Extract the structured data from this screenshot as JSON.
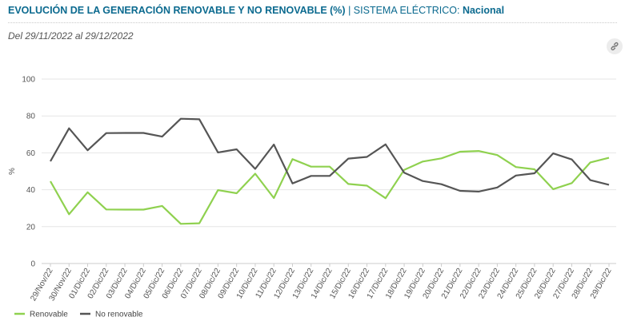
{
  "header": {
    "title": "EVOLUCIÓN DE LA GENERACIÓN RENOVABLE Y NO RENOVABLE (%)",
    "separator": "|",
    "system_label": "SISTEMA ELÉCTRICO:",
    "system_value": "Nacional"
  },
  "date_range": "Del 29/11/2022 al 29/12/2022",
  "link_icon": "link-icon",
  "colors": {
    "renovable": "#8fd14f",
    "no_renovable": "#555555",
    "grid": "#e6e6e6",
    "title": "#0b6a8f"
  },
  "chart_data": {
    "type": "line",
    "ylabel": "%",
    "ylim": [
      0,
      100
    ],
    "yticks": [
      "0",
      "20",
      "40",
      "60",
      "80",
      "100"
    ],
    "grid": true,
    "legend_position": "bottom-left",
    "categories": [
      "29/Nov/22",
      "30/Nov/22",
      "01/Dic/22",
      "02/Dic/22",
      "03/Dic/22",
      "04/Dic/22",
      "05/Dic/22",
      "06/Dic/22",
      "07/Dic/22",
      "08/Dic/22",
      "09/Dic/22",
      "10/Dic/22",
      "11/Dic/22",
      "12/Dic/22",
      "13/Dic/22",
      "14/Dic/22",
      "15/Dic/22",
      "16/Dic/22",
      "17/Dic/22",
      "18/Dic/22",
      "19/Dic/22",
      "20/Dic/22",
      "21/Dic/22",
      "22/Dic/22",
      "23/Dic/22",
      "24/Dic/22",
      "25/Dic/22",
      "26/Dic/22",
      "27/Dic/22",
      "28/Dic/22",
      "29/Dic/22"
    ],
    "series": [
      {
        "name": "Renovable",
        "values": [
          44.6,
          26.7,
          38.6,
          29.3,
          29.2,
          29.2,
          31.2,
          21.5,
          21.8,
          39.8,
          38.1,
          48.7,
          35.5,
          56.6,
          52.5,
          52.5,
          43.1,
          42.2,
          35.4,
          50.8,
          55.3,
          57.0,
          60.6,
          61.0,
          58.8,
          52.3,
          51.1,
          40.3,
          43.6,
          54.8,
          57.3
        ]
      },
      {
        "name": "No renovable",
        "values": [
          55.4,
          73.3,
          61.4,
          70.7,
          70.8,
          70.8,
          68.8,
          78.5,
          78.2,
          60.2,
          61.9,
          51.3,
          64.5,
          43.4,
          47.5,
          47.5,
          56.9,
          57.8,
          64.6,
          49.2,
          44.7,
          43.0,
          39.4,
          39.0,
          41.2,
          47.7,
          48.9,
          59.7,
          56.4,
          45.2,
          42.7
        ]
      }
    ]
  }
}
